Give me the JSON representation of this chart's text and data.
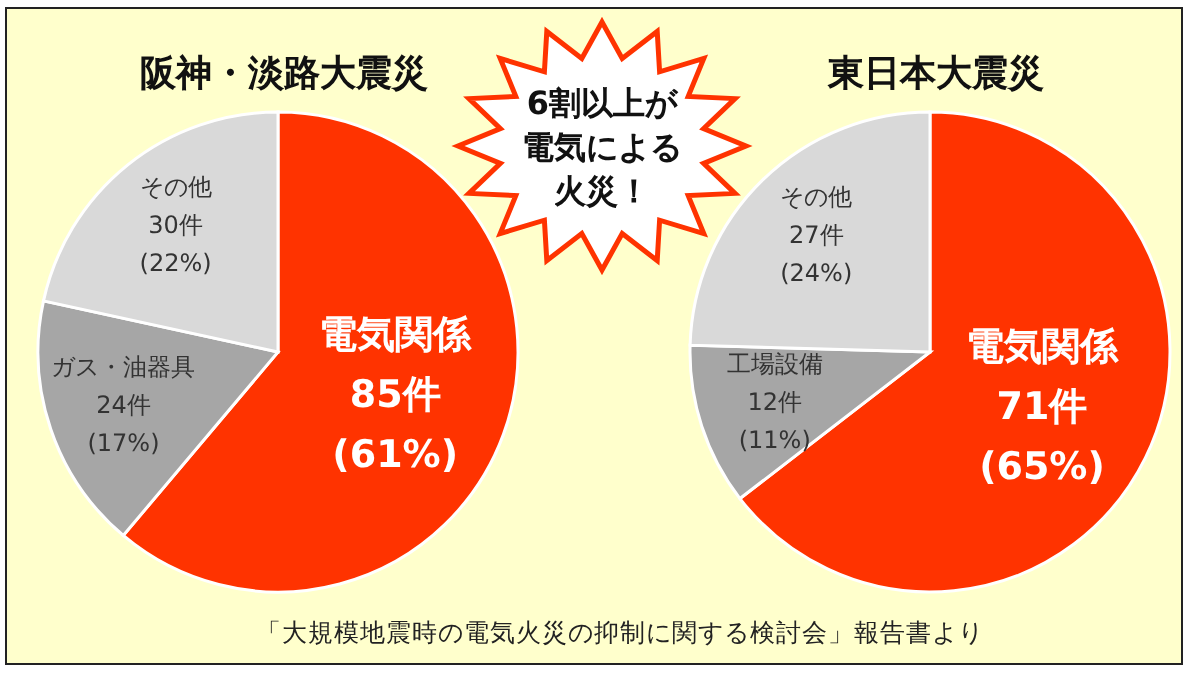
{
  "chart_data": [
    {
      "type": "pie",
      "title": "阪神・淡路大震災",
      "categories": [
        "電気関係",
        "ガス・油器具",
        "その他"
      ],
      "values": [
        85,
        24,
        30
      ],
      "colors": [
        "#ff3300",
        "#a6a6a6",
        "#d9d9d9"
      ],
      "value_labels": [
        "85件\n(61%)",
        "24件\n(17%)",
        "30件\n(22%)"
      ],
      "annotations": [
        "6割以上が電気による火災！",
        "「大規模地震時の電気火災の抑制に関する検討会」報告書より"
      ]
    },
    {
      "type": "pie",
      "title": "東日本大震災",
      "categories": [
        "電気関係",
        "工場設備",
        "その他"
      ],
      "values": [
        71,
        12,
        27
      ],
      "colors": [
        "#ff3300",
        "#a6a6a6",
        "#d9d9d9"
      ],
      "value_labels": [
        "71件\n(65%)",
        "12件\n(11%)",
        "27件\n(24%)"
      ]
    }
  ]
}
